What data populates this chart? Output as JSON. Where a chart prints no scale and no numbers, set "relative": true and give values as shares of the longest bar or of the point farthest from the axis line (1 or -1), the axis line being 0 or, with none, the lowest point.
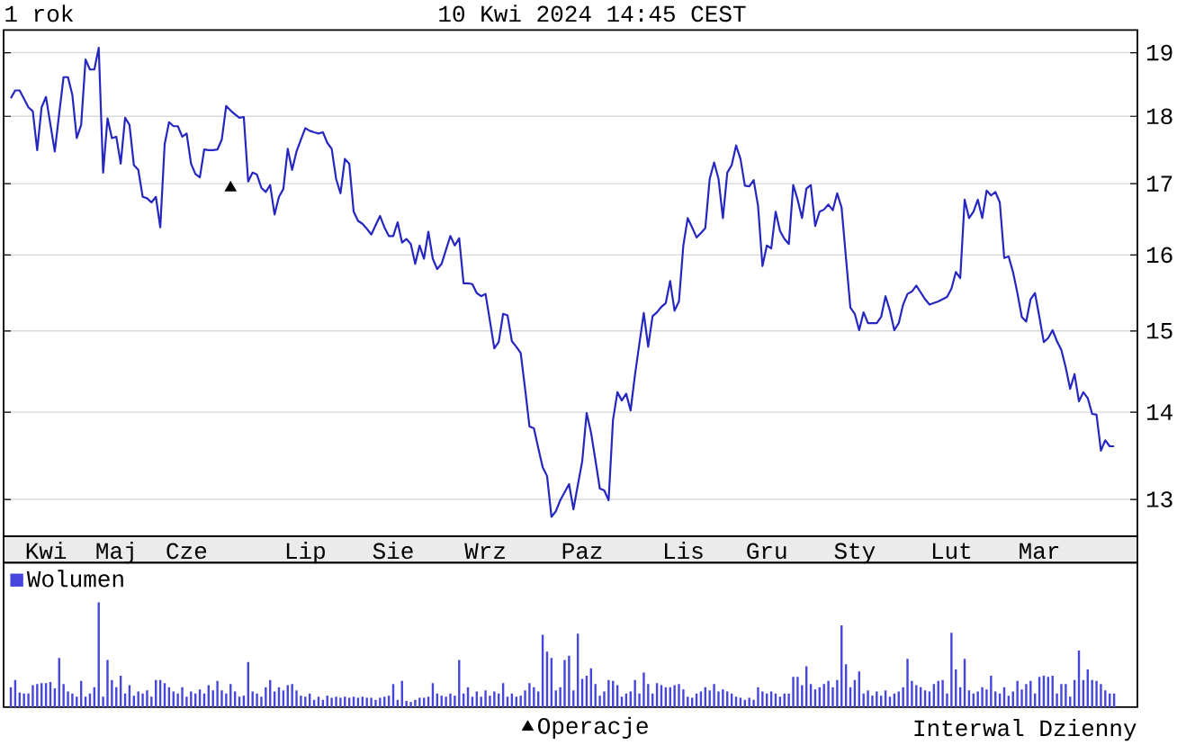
{
  "chart_data": [
    {
      "type": "line",
      "title": "1 rok",
      "subtitle": "10 Kwi 2024 14:45 CEST",
      "annotations": [
        "Interwal Dzienny"
      ],
      "log": true,
      "grid": "y",
      "legend": "bottom",
      "categories": [
        null,
        null,
        null,
        null,
        null,
        null,
        null,
        null,
        "Kwi",
        null,
        null,
        null,
        null,
        null,
        null,
        null,
        null,
        null,
        null,
        null,
        null,
        null,
        null,
        null,
        "Maj",
        null,
        null,
        null,
        null,
        null,
        null,
        null,
        null,
        null,
        null,
        null,
        null,
        null,
        null,
        null,
        "Cze",
        null,
        null,
        null,
        null,
        null,
        null,
        null,
        null,
        null,
        null,
        null,
        null,
        null,
        null,
        null,
        null,
        null,
        null,
        null,
        null,
        null,
        null,
        null,
        null,
        null,
        null,
        "Lip",
        null,
        null,
        null,
        null,
        null,
        null,
        null,
        null,
        null,
        null,
        null,
        null,
        null,
        null,
        null,
        null,
        null,
        null,
        null,
        "Sie",
        null,
        null,
        null,
        null,
        null,
        null,
        null,
        null,
        null,
        null,
        null,
        null,
        null,
        null,
        null,
        null,
        null,
        null,
        null,
        null,
        "Wrz",
        null,
        null,
        null,
        null,
        null,
        null,
        null,
        null,
        null,
        null,
        null,
        null,
        null,
        null,
        null,
        null,
        null,
        null,
        null,
        null,
        null,
        "Paz",
        null,
        null,
        null,
        null,
        null,
        null,
        null,
        null,
        null,
        null,
        null,
        null,
        null,
        null,
        null,
        null,
        null,
        null,
        null,
        null,
        null,
        null,
        "Lis",
        null,
        null,
        null,
        null,
        null,
        null,
        null,
        null,
        null,
        null,
        null,
        null,
        null,
        null,
        null,
        null,
        null,
        null,
        "Gru",
        null,
        null,
        null,
        null,
        null,
        null,
        null,
        null,
        null,
        null,
        null,
        null,
        null,
        null,
        null,
        null,
        null,
        null,
        null,
        "Sty",
        null,
        null,
        null,
        null,
        null,
        null,
        null,
        null,
        null,
        null,
        null,
        null,
        null,
        null,
        null,
        null,
        null,
        null,
        null,
        null,
        null,
        "Lut",
        null,
        null,
        null,
        null,
        null,
        null,
        null,
        null,
        null,
        null,
        null,
        null,
        null,
        null,
        null,
        null,
        null,
        null,
        null,
        "Mar",
        null,
        null,
        null,
        null,
        null,
        null,
        null,
        null,
        null,
        null,
        null,
        null,
        null,
        null,
        null,
        null,
        null
      ],
      "ylim": [
        12.6,
        19.37
      ],
      "yticks": [
        13,
        14,
        15,
        16,
        17,
        18,
        19
      ],
      "series": [
        {
          "color": "#2626c0",
          "values": [
            18.28,
            18.4,
            18.4,
            18.27,
            18.14,
            18.08,
            17.49,
            18.14,
            18.3,
            17.88,
            17.47,
            18.04,
            18.61,
            18.61,
            18.33,
            17.67,
            17.87,
            18.89,
            18.73,
            18.73,
            19.08,
            17.16,
            17.97,
            17.67,
            17.69,
            17.29,
            17.98,
            17.87,
            17.27,
            17.2,
            16.81,
            16.79,
            16.73,
            16.81,
            16.38,
            17.58,
            17.91,
            17.85,
            17.85,
            17.69,
            17.74,
            17.29,
            17.14,
            17.09,
            17.5,
            17.49,
            17.49,
            17.5,
            17.65,
            18.16,
            18.09,
            18.03,
            17.98,
            17.99,
            17.03,
            17.16,
            17.13,
            16.94,
            16.88,
            16.98,
            16.56,
            16.81,
            16.92,
            17.51,
            17.2,
            17.47,
            17.65,
            17.82,
            17.78,
            17.76,
            17.74,
            17.76,
            17.6,
            17.51,
            17.07,
            16.86,
            17.36,
            17.29,
            16.6,
            16.47,
            16.43,
            16.36,
            16.28,
            16.41,
            16.54,
            16.38,
            16.26,
            16.26,
            16.45,
            16.17,
            16.22,
            16.15,
            15.88,
            16.13,
            15.95,
            16.32,
            15.95,
            15.81,
            15.88,
            16.07,
            16.26,
            16.13,
            16.23,
            15.62,
            15.62,
            15.61,
            15.49,
            15.45,
            15.48,
            15.13,
            14.78,
            14.86,
            15.22,
            15.2,
            14.87,
            14.8,
            14.72,
            14.28,
            13.83,
            13.81,
            13.58,
            13.36,
            13.26,
            12.81,
            12.87,
            12.99,
            13.08,
            13.17,
            12.89,
            13.16,
            13.43,
            13.99,
            13.76,
            13.44,
            13.12,
            13.1,
            12.99,
            13.91,
            14.24,
            14.14,
            14.22,
            14.02,
            14.45,
            14.84,
            15.23,
            14.8,
            15.19,
            15.24,
            15.31,
            15.36,
            15.65,
            15.26,
            15.38,
            16.13,
            16.51,
            16.38,
            16.24,
            16.3,
            16.37,
            17.07,
            17.31,
            17.07,
            16.51,
            17.16,
            17.27,
            17.56,
            17.36,
            16.97,
            16.96,
            17.05,
            16.68,
            15.85,
            16.13,
            16.09,
            16.6,
            16.33,
            16.22,
            16.15,
            16.98,
            16.77,
            16.51,
            16.93,
            16.98,
            16.4,
            16.6,
            16.63,
            16.7,
            16.62,
            16.86,
            16.66,
            15.96,
            15.3,
            15.22,
            15.01,
            15.24,
            15.1,
            15.1,
            15.1,
            15.18,
            15.45,
            15.26,
            15.01,
            15.1,
            15.34,
            15.48,
            15.51,
            15.59,
            15.5,
            15.41,
            15.34,
            15.36,
            15.38,
            15.41,
            15.44,
            15.55,
            15.77,
            15.69,
            16.77,
            16.51,
            16.6,
            16.77,
            16.51,
            16.9,
            16.83,
            16.88,
            16.73,
            15.96,
            15.98,
            15.77,
            15.49,
            15.18,
            15.12,
            15.41,
            15.49,
            15.18,
            14.86,
            14.91,
            15.01,
            14.87,
            14.76,
            14.54,
            14.28,
            14.46,
            14.13,
            14.24,
            14.17,
            13.98,
            13.97,
            13.55,
            13.67,
            13.6,
            13.6
          ]
        },
        {
          "type": "scatter",
          "name": "Operacje",
          "color": "#000000",
          "marker": "triangle",
          "values": [
            null,
            null,
            null,
            null,
            null,
            null,
            null,
            null,
            null,
            null,
            null,
            null,
            null,
            null,
            null,
            null,
            null,
            null,
            null,
            null,
            null,
            null,
            null,
            null,
            null,
            null,
            null,
            null,
            null,
            null,
            null,
            null,
            null,
            null,
            null,
            null,
            null,
            null,
            null,
            null,
            null,
            null,
            null,
            null,
            null,
            null,
            null,
            null,
            null,
            null,
            16.94,
            null,
            null,
            null,
            null,
            null,
            null,
            null,
            null,
            null,
            null,
            null,
            null,
            null,
            null,
            null,
            null,
            null,
            null,
            null,
            null,
            null,
            null,
            null,
            null,
            null,
            null,
            null,
            null,
            null,
            null,
            null,
            null,
            null,
            null,
            null,
            null,
            null,
            null,
            null,
            null,
            null,
            null,
            null,
            null,
            null,
            null,
            null,
            null,
            null,
            null,
            null,
            null,
            null,
            null,
            null,
            null,
            null,
            null,
            null,
            null,
            null,
            null,
            null,
            null,
            null,
            null,
            null,
            null,
            null,
            null,
            null,
            null,
            null,
            null,
            null,
            null,
            null,
            null,
            null,
            null,
            null,
            null,
            null,
            null,
            null,
            null,
            null,
            null,
            null,
            null,
            null,
            null,
            null,
            null,
            null,
            null,
            null,
            null,
            null,
            null,
            null,
            null,
            null,
            null,
            null,
            null,
            null,
            null,
            null,
            null,
            null,
            null,
            null,
            null,
            null,
            null,
            null,
            null,
            null,
            null,
            null,
            null,
            null,
            null,
            null,
            null,
            null,
            null,
            null,
            null,
            null,
            null,
            null,
            null,
            null,
            null,
            null,
            null,
            null,
            null,
            null,
            null,
            null,
            null,
            null,
            null,
            null,
            null,
            null,
            null,
            null,
            null,
            null,
            null,
            null,
            null,
            null,
            null,
            null,
            null,
            null,
            null,
            null,
            null,
            null,
            null,
            null,
            null,
            null,
            null,
            null,
            null,
            null,
            null,
            null,
            null,
            null,
            null,
            null,
            null,
            null,
            null,
            null,
            null,
            null,
            null,
            null,
            null,
            null,
            null,
            null,
            null,
            null,
            null,
            null,
            null,
            null,
            null,
            null,
            null,
            null
          ]
        }
      ]
    },
    {
      "type": "bar",
      "relative": true,
      "legend": "top left",
      "categories": [
        null,
        null,
        null,
        null,
        null,
        null,
        null,
        null,
        null,
        null,
        null,
        null,
        null,
        null,
        null,
        null,
        null,
        null,
        null,
        null,
        null,
        null,
        null,
        null,
        null,
        null,
        null,
        null,
        null,
        null,
        null,
        null,
        null,
        null,
        null,
        null,
        null,
        null,
        null,
        null,
        null,
        null,
        null,
        null,
        null,
        null,
        null,
        null,
        null,
        null,
        null,
        null,
        null,
        null,
        null,
        null,
        null,
        null,
        null,
        null,
        null,
        null,
        null,
        null,
        null,
        null,
        null,
        null,
        null,
        null,
        null,
        null,
        null,
        null,
        null,
        null,
        null,
        null,
        null,
        null,
        null,
        null,
        null,
        null,
        null,
        null,
        null,
        null,
        null,
        null,
        null,
        null,
        null,
        null,
        null,
        null,
        null,
        null,
        null,
        null,
        null,
        null,
        null,
        null,
        null,
        null,
        null,
        null,
        null,
        null,
        null,
        null,
        null,
        null,
        null,
        null,
        null,
        null,
        null,
        null,
        null,
        null,
        null,
        null,
        null,
        null,
        null,
        null,
        null,
        null,
        null,
        null,
        null,
        null,
        null,
        null,
        null,
        null,
        null,
        null,
        null,
        null,
        null,
        null,
        null,
        null,
        null,
        null,
        null,
        null,
        null,
        null,
        null,
        null,
        null,
        null,
        null,
        null,
        null,
        null,
        null,
        null,
        null,
        null,
        null,
        null,
        null,
        null,
        null,
        null,
        null,
        null,
        null,
        null,
        null,
        null,
        null,
        null,
        null,
        null,
        null,
        null,
        null,
        null,
        null,
        null,
        null,
        null,
        null,
        null,
        null,
        null,
        null,
        null,
        null,
        null,
        null,
        null,
        null,
        null,
        null,
        null,
        null,
        null,
        null,
        null,
        null,
        null,
        null,
        null,
        null,
        null,
        null,
        null,
        null,
        null,
        null,
        null,
        null,
        null,
        null,
        null,
        null,
        null,
        null,
        null,
        null,
        null,
        null,
        null,
        null,
        null,
        null,
        null,
        null,
        null,
        null,
        null,
        null,
        null,
        null,
        null,
        null,
        null,
        null,
        null,
        null,
        null,
        null,
        null,
        null,
        null
      ],
      "series": [
        {
          "name": "Wolumen",
          "color": "#4646dc",
          "values": [
            0.19,
            0.26,
            0.14,
            0.13,
            0.13,
            0.21,
            0.22,
            0.23,
            0.23,
            0.24,
            0.18,
            0.47,
            0.22,
            0.15,
            0.13,
            0.1,
            0.25,
            0.1,
            0.13,
            0.19,
            1,
            0.1,
            0.45,
            0.26,
            0.19,
            0.3,
            0.13,
            0.21,
            0.11,
            0.15,
            0.13,
            0.16,
            0.1,
            0.26,
            0.26,
            0.23,
            0.19,
            0.15,
            0.13,
            0.19,
            0.1,
            0.15,
            0.13,
            0.17,
            0.13,
            0.21,
            0.16,
            0.25,
            0.16,
            0.13,
            0.22,
            0.15,
            0.1,
            0.11,
            0.43,
            0.15,
            0.13,
            0.1,
            0.19,
            0.26,
            0.15,
            0.19,
            0.16,
            0.21,
            0.22,
            0.16,
            0.11,
            0.1,
            0.13,
            0.07,
            0.1,
            0.07,
            0.11,
            0.09,
            0.1,
            0.09,
            0.1,
            0.09,
            0.1,
            0.09,
            0.1,
            0.09,
            0.09,
            0.07,
            0.09,
            0.1,
            0.11,
            0.22,
            0.07,
            0.25,
            0.06,
            0.05,
            0.07,
            0.09,
            0.09,
            0.1,
            0.23,
            0.13,
            0.11,
            0.1,
            0.13,
            0.11,
            0.45,
            0.13,
            0.19,
            0.1,
            0.15,
            0.1,
            0.16,
            0.11,
            0.15,
            0.13,
            0.23,
            0.1,
            0.13,
            0.1,
            0.11,
            0.16,
            0.23,
            0.19,
            0.15,
            0.69,
            0.53,
            0.47,
            0.16,
            0.19,
            0.45,
            0.49,
            0.16,
            0.7,
            0.27,
            0.3,
            0.37,
            0.22,
            0.11,
            0.15,
            0.26,
            0.25,
            0.21,
            0.1,
            0.13,
            0.15,
            0.26,
            0.13,
            0.33,
            0.22,
            0.13,
            0.23,
            0.21,
            0.19,
            0.19,
            0.21,
            0.22,
            0.17,
            0.1,
            0.09,
            0.13,
            0.15,
            0.19,
            0.16,
            0.22,
            0.15,
            0.17,
            0.15,
            0.13,
            0.1,
            0.09,
            0.07,
            0.09,
            0.07,
            0.19,
            0.15,
            0.13,
            0.15,
            0.13,
            0.1,
            0.13,
            0.13,
            0.29,
            0.29,
            0.21,
            0.39,
            0.22,
            0.17,
            0.19,
            0.22,
            0.25,
            0.19,
            0.26,
            0.78,
            0.41,
            0.19,
            0.26,
            0.34,
            0.13,
            0.16,
            0.11,
            0.15,
            0.11,
            0.16,
            0.1,
            0.13,
            0.15,
            0.19,
            0.46,
            0.25,
            0.21,
            0.19,
            0.16,
            0.15,
            0.22,
            0.25,
            0.26,
            0.13,
            0.71,
            0.36,
            0.19,
            0.46,
            0.16,
            0.13,
            0.15,
            0.19,
            0.17,
            0.3,
            0.15,
            0.13,
            0.19,
            0.11,
            0.15,
            0.25,
            0.17,
            0.22,
            0.25,
            0.13,
            0.29,
            0.3,
            0.29,
            0.3,
            0.13,
            0.22,
            0.22,
            0.1,
            0.26,
            0.54,
            0.26,
            0.36,
            0.26,
            0.25,
            0.22,
            0.16,
            0.13,
            0.13
          ]
        }
      ]
    }
  ]
}
